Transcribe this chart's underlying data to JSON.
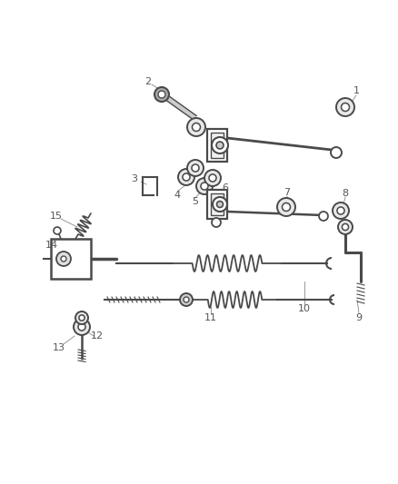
{
  "background_color": "#ffffff",
  "line_color": "#4a4a4a",
  "label_color": "#555555",
  "figsize": [
    4.38,
    5.33
  ],
  "dpi": 100,
  "xlim": [
    0,
    438
  ],
  "ylim": [
    0,
    533
  ]
}
